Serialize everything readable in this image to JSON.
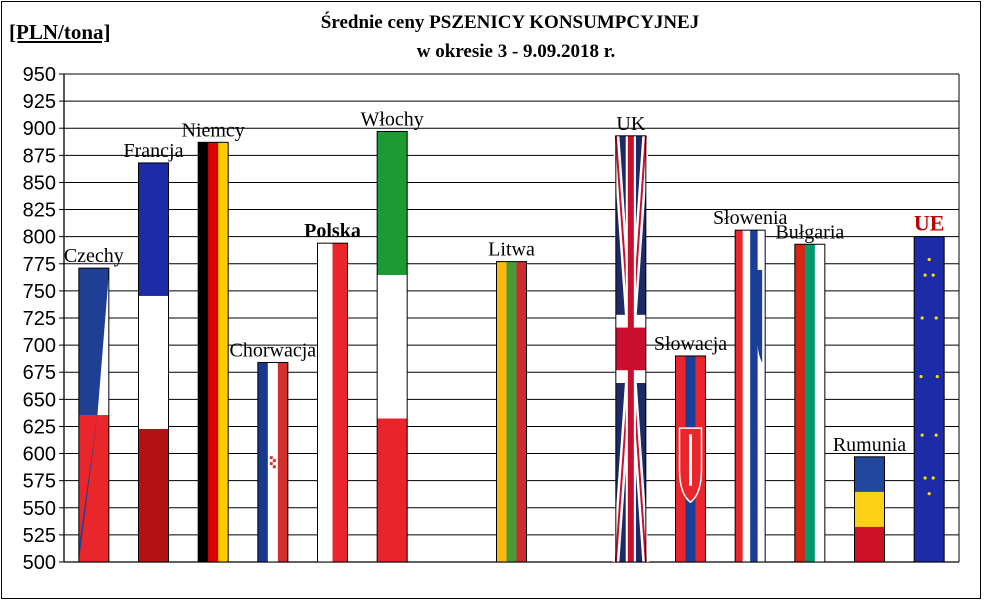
{
  "chart_data": {
    "type": "bar",
    "title_line1": "Średnie ceny PSZENICY  KONSUMPCYJNEJ",
    "title_line2": "w okresie  3 - 9.09.2018 r.",
    "unit_label": "[PLN/tona]",
    "ylim": [
      500,
      950
    ],
    "ytick_step": 25,
    "yticks": [
      "500",
      "525",
      "550",
      "575",
      "600",
      "625",
      "650",
      "675",
      "700",
      "725",
      "750",
      "775",
      "800",
      "825",
      "850",
      "875",
      "900",
      "925",
      "950"
    ],
    "grid": true,
    "categories": [
      "Czechy",
      "Francja",
      "Niemcy",
      "Chorwacja",
      "Polska",
      "Włochy",
      "",
      "Litwa",
      "",
      "UK",
      "Słowacja",
      "Słowenia",
      "Bułgaria",
      "Rumunia",
      "UE"
    ],
    "values": [
      771,
      868,
      887,
      684,
      794,
      897,
      500,
      777,
      500,
      893,
      690,
      806,
      793,
      597,
      800
    ],
    "flags": [
      "cz",
      "fr",
      "de",
      "hr",
      "pl",
      "it",
      "none",
      "lt",
      "none",
      "uk",
      "sk",
      "si",
      "bg",
      "ro",
      "eu"
    ],
    "label_styles": [
      "normal",
      "normal",
      "normal",
      "normal",
      "bold",
      "normal",
      "none",
      "normal",
      "none",
      "normal",
      "normal",
      "normal",
      "normal",
      "normal",
      "ue"
    ]
  },
  "colors": {
    "ue_label": "#c00000",
    "axis": "#000000",
    "grid": "#000000"
  }
}
